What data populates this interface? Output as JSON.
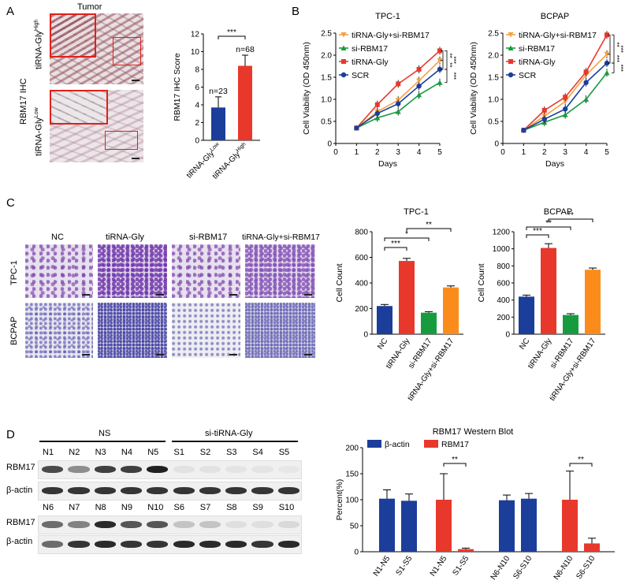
{
  "panelA": {
    "letter": "A",
    "tumor_label": "Tumor",
    "ihc_label": "RBM17 IHC",
    "high_label": "tiRNA-Gly",
    "high_sup": "High",
    "low_label": "tiRNA-Gly",
    "low_sup": "Low",
    "colors": {
      "low": "#1b3e9a",
      "high": "#e8382c"
    },
    "chart_data": {
      "type": "bar",
      "title": "",
      "ylabel": "RBM17 IHC Score",
      "ylim": [
        0,
        12
      ],
      "yticks": [
        "0",
        "2",
        "4",
        "6",
        "8",
        "10",
        "12"
      ],
      "categories": [
        "tiRNA-Gly Low",
        "tiRNA-Gly High"
      ],
      "values": [
        3.7,
        8.4
      ],
      "errors": [
        1.2,
        1.2
      ],
      "annotations": [
        "n=23",
        "n=68"
      ],
      "significance": "***"
    }
  },
  "panelB": {
    "letter": "B",
    "legend": [
      "tiRNA-Gly+si-RBM17",
      "si-RBM17",
      "tiRNA-Gly",
      "SCR"
    ],
    "colors": {
      "combo": "#f5a142",
      "si": "#169c3f",
      "tirna": "#e8382c",
      "scr": "#1b3e9a"
    },
    "chart_data": [
      {
        "type": "line",
        "title": "TPC-1",
        "xlabel": "Days",
        "ylabel": "Cell Viability (OD 450nm)",
        "x": [
          1,
          2,
          3,
          4,
          5
        ],
        "xlim": [
          0,
          5
        ],
        "ylim": [
          0,
          2.5
        ],
        "xticks": [
          "0",
          "1",
          "2",
          "3",
          "4",
          "5"
        ],
        "yticks": [
          "0",
          "0.5",
          "1.0",
          "1.5",
          "2.0",
          "2.5"
        ],
        "series": [
          {
            "name": "tiRNA-Gly+si-RBM17",
            "values": [
              0.35,
              0.72,
              0.98,
              1.42,
              1.88
            ]
          },
          {
            "name": "si-RBM17",
            "values": [
              0.35,
              0.58,
              0.72,
              1.1,
              1.38
            ]
          },
          {
            "name": "tiRNA-Gly",
            "values": [
              0.35,
              0.88,
              1.35,
              1.68,
              2.1
            ]
          },
          {
            "name": "SCR",
            "values": [
              0.35,
              0.68,
              0.9,
              1.3,
              1.68
            ]
          }
        ],
        "significance": [
          "**",
          "***",
          "**",
          "***"
        ]
      },
      {
        "type": "line",
        "title": "BCPAP",
        "xlabel": "Days",
        "ylabel": "Cell Viability (OD 450nm)",
        "x": [
          1,
          2,
          3,
          4,
          5
        ],
        "xlim": [
          0,
          5
        ],
        "ylim": [
          0,
          2.5
        ],
        "xticks": [
          "0",
          "1",
          "2",
          "3",
          "4",
          "5"
        ],
        "yticks": [
          "0",
          "0.5",
          "1.0",
          "1.5",
          "2.0",
          "2.5"
        ],
        "series": [
          {
            "name": "tiRNA-Gly+si-RBM17",
            "values": [
              0.3,
              0.62,
              0.95,
              1.55,
              2.02
            ]
          },
          {
            "name": "si-RBM17",
            "values": [
              0.3,
              0.48,
              0.65,
              1.0,
              1.6
            ]
          },
          {
            "name": "tiRNA-Gly",
            "values": [
              0.3,
              0.75,
              1.05,
              1.62,
              2.46
            ]
          },
          {
            "name": "SCR",
            "values": [
              0.3,
              0.55,
              0.78,
              1.38,
              1.82
            ]
          }
        ],
        "significance": [
          "**",
          "***",
          "***",
          "***"
        ]
      }
    ]
  },
  "panelC": {
    "letter": "C",
    "col_labels": [
      "NC",
      "tiRNA-Gly",
      "si-RBM17",
      "tiRNA-Gly+si-RBM17"
    ],
    "row_labels": [
      "TPC-1",
      "BCPAP"
    ],
    "colors": [
      "#1b3e9a",
      "#e8382c",
      "#169c3f",
      "#fb8c1c"
    ],
    "chart_data": [
      {
        "type": "bar",
        "title": "TPC-1",
        "ylabel": "Cell Count",
        "categories": [
          "NC",
          "tiRNA-Gly",
          "si-RBM17",
          "tiRNA-Gly+si-RBM17"
        ],
        "values": [
          220,
          572,
          168,
          365
        ],
        "errors": [
          12,
          20,
          8,
          12
        ],
        "ylim": [
          0,
          800
        ],
        "yticks": [
          "0",
          "200",
          "400",
          "600",
          "800"
        ],
        "significance": [
          "***",
          "*",
          "**"
        ]
      },
      {
        "type": "bar",
        "title": "BCPAP",
        "ylabel": "Cell Count",
        "categories": [
          "NC",
          "tiRNA-Gly",
          "si-RBM17",
          "tiRNA-Gly+si-RBM17"
        ],
        "values": [
          440,
          1010,
          225,
          755
        ],
        "errors": [
          18,
          50,
          15,
          20
        ],
        "ylim": [
          0,
          1200
        ],
        "yticks": [
          "0",
          "200",
          "400",
          "600",
          "800",
          "1000",
          "1200"
        ],
        "significance": [
          "***",
          "**",
          "**"
        ]
      }
    ]
  },
  "panelD": {
    "letter": "D",
    "group_ns": "NS",
    "group_si": "si-tiRNA-Gly",
    "row_rbm17": "RBM17",
    "row_actin": "β-actin",
    "lanes_top": [
      "N1",
      "N2",
      "N3",
      "N4",
      "N5",
      "S1",
      "S2",
      "S3",
      "S4",
      "S5"
    ],
    "lanes_bottom": [
      "N6",
      "N7",
      "N8",
      "N9",
      "N10",
      "S6",
      "S7",
      "S8",
      "S9",
      "S10"
    ],
    "chart_data": {
      "type": "bar",
      "title": "RBM17 Western Blot",
      "ylabel": "Percent(%)",
      "ylim": [
        0,
        200
      ],
      "yticks": [
        "0",
        "50",
        "100",
        "150",
        "200"
      ],
      "categories": [
        "N1-N5",
        "S1-S5",
        "N1-N5",
        "S1-S5",
        "N6-N10",
        "S6-S10",
        "N6-N10",
        "S6-S10"
      ],
      "series": [
        {
          "name": "β-actin",
          "color": "#1b3e9a",
          "values": [
            102,
            98,
            null,
            null,
            99,
            102,
            null,
            null
          ],
          "errors": [
            17,
            13,
            null,
            null,
            10,
            10,
            null,
            null
          ]
        },
        {
          "name": "RBM17",
          "color": "#e8382c",
          "values": [
            null,
            null,
            100,
            5,
            null,
            null,
            100,
            16
          ],
          "errors": [
            null,
            null,
            50,
            2,
            null,
            null,
            55,
            10
          ]
        }
      ],
      "significance": [
        "**",
        "**"
      ]
    }
  }
}
